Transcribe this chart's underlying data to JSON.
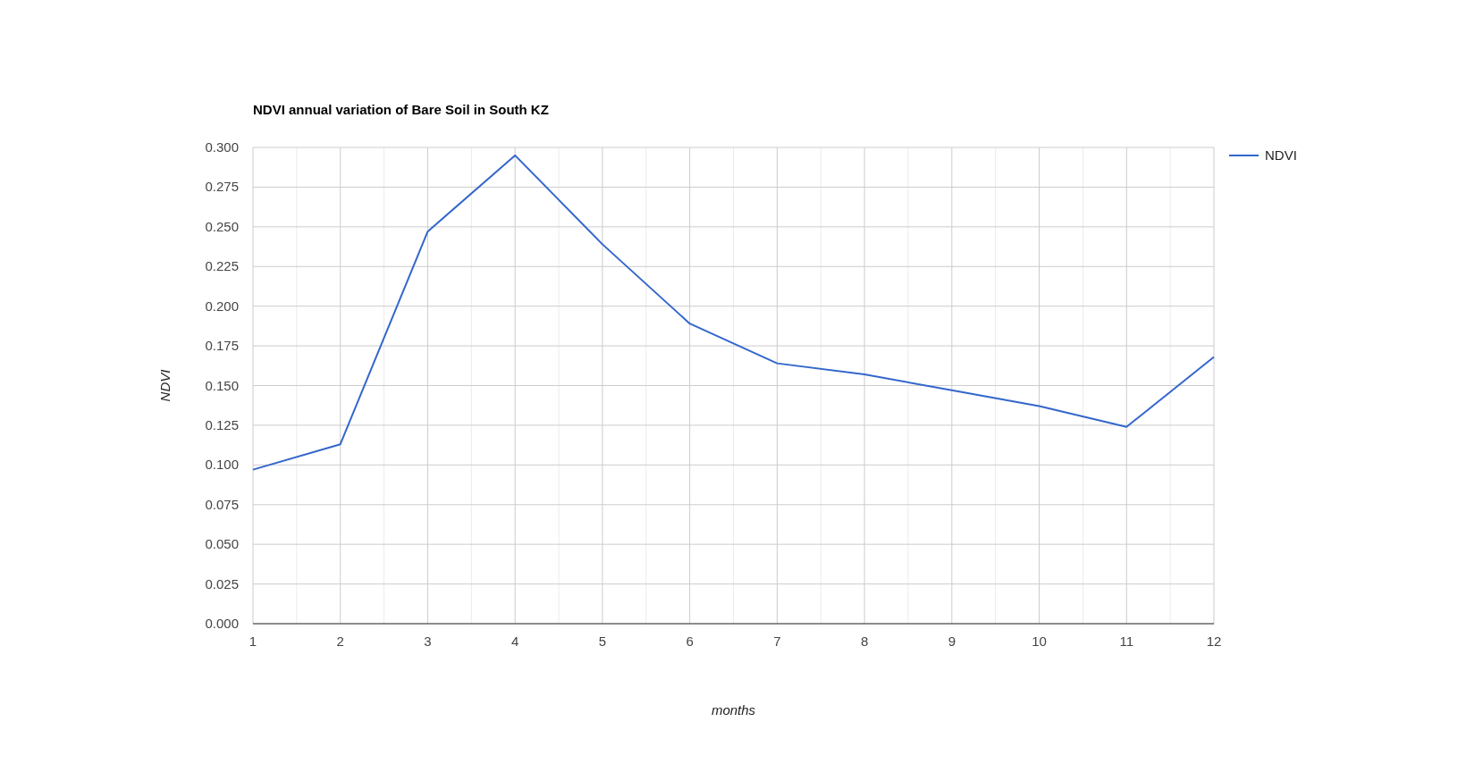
{
  "chart_data": {
    "type": "line",
    "title": "NDVI annual variation of Bare Soil in South KZ",
    "xlabel": "months",
    "ylabel": "NDVI",
    "x": [
      1,
      2,
      3,
      4,
      5,
      6,
      7,
      8,
      9,
      10,
      11,
      12
    ],
    "series": [
      {
        "name": "NDVI",
        "color": "#3366cc",
        "values": [
          0.097,
          0.113,
          0.247,
          0.295,
          0.239,
          0.189,
          0.164,
          0.157,
          0.147,
          0.137,
          0.124,
          0.168
        ]
      }
    ],
    "xlim": [
      1,
      12
    ],
    "xticks": [
      1,
      {
        "value": 1.5,
        "label": null
      },
      2,
      {
        "value": 2.5,
        "label": null
      },
      3,
      {
        "value": 3.5,
        "label": null
      },
      4,
      {
        "value": 4.5,
        "label": null
      },
      5,
      {
        "value": 5.5,
        "label": null
      },
      6,
      {
        "value": 6.5,
        "label": null
      },
      7,
      {
        "value": 7.5,
        "label": null
      },
      8,
      {
        "value": 8.5,
        "label": null
      },
      9,
      {
        "value": 9.5,
        "label": null
      },
      10,
      {
        "value": 10.5,
        "label": null
      },
      11,
      {
        "value": 11.5,
        "label": null
      },
      12
    ],
    "ylim": [
      0,
      0.3
    ],
    "yticks": [
      {
        "value": 0,
        "label": "0.000"
      },
      {
        "value": 0.025,
        "label": "0.025"
      },
      {
        "value": 0.05,
        "label": "0.050"
      },
      {
        "value": 0.075,
        "label": "0.075"
      },
      {
        "value": 0.1,
        "label": "0.100"
      },
      {
        "value": 0.125,
        "label": "0.125"
      },
      {
        "value": 0.15,
        "label": "0.150"
      },
      {
        "value": 0.175,
        "label": "0.175"
      },
      {
        "value": 0.2,
        "label": "0.200"
      },
      {
        "value": 0.225,
        "label": "0.225"
      },
      {
        "value": 0.25,
        "label": "0.250"
      },
      {
        "value": 0.275,
        "label": "0.275"
      },
      {
        "value": 0.3,
        "label": "0.300"
      }
    ],
    "grid": true,
    "legend": "top right",
    "marker": "none",
    "line_style": "solid"
  }
}
